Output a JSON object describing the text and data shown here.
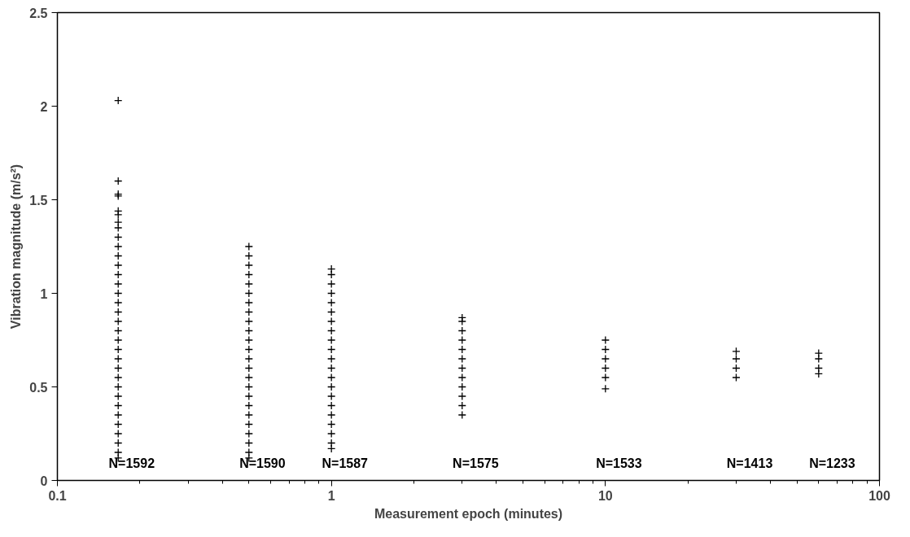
{
  "chart_data": {
    "type": "scatter",
    "xlabel": "Measurement epoch (minutes)",
    "ylabel": "Vibration magnitude (m/s²)",
    "log": "x",
    "marker": "cross",
    "grid": false,
    "xlim": [
      0.1,
      100
    ],
    "ylim": [
      0,
      2.5
    ],
    "xticks": [
      0.1,
      {
        "value": 0.2,
        "label": null
      },
      {
        "value": 0.3,
        "label": null
      },
      {
        "value": 0.4,
        "label": null
      },
      {
        "value": 0.5,
        "label": null
      },
      {
        "value": 0.6,
        "label": null
      },
      {
        "value": 0.7,
        "label": null
      },
      {
        "value": 0.8,
        "label": null
      },
      {
        "value": 0.9,
        "label": null
      },
      1,
      {
        "value": 2,
        "label": null
      },
      {
        "value": 3,
        "label": null
      },
      {
        "value": 4,
        "label": null
      },
      {
        "value": 5,
        "label": null
      },
      {
        "value": 6,
        "label": null
      },
      {
        "value": 7,
        "label": null
      },
      {
        "value": 8,
        "label": null
      },
      {
        "value": 9,
        "label": null
      },
      10,
      {
        "value": 20,
        "label": null
      },
      {
        "value": 30,
        "label": null
      },
      {
        "value": 40,
        "label": null
      },
      {
        "value": 50,
        "label": null
      },
      {
        "value": 60,
        "label": null
      },
      {
        "value": 70,
        "label": null
      },
      {
        "value": 80,
        "label": null
      },
      {
        "value": 90,
        "label": null
      },
      100
    ],
    "yticks": [
      0,
      0.5,
      1,
      1.5,
      2,
      2.5
    ],
    "series": [
      {
        "color": "#000000",
        "x": [
          0.1667,
          0.1667,
          0.1667,
          0.1667,
          0.1667,
          0.1667,
          0.1667,
          0.1667,
          0.1667,
          0.1667,
          0.1667,
          0.1667,
          0.1667,
          0.1667,
          0.1667,
          0.1667,
          0.1667,
          0.1667,
          0.1667,
          0.1667,
          0.1667,
          0.1667,
          0.1667,
          0.1667,
          0.1667,
          0.1667,
          0.1667,
          0.1667,
          0.1667,
          0.1667,
          0.1667,
          0.1667,
          0.1667
        ],
        "values": [
          0.12,
          0.15,
          0.2,
          0.25,
          0.3,
          0.35,
          0.4,
          0.45,
          0.5,
          0.55,
          0.6,
          0.65,
          0.7,
          0.75,
          0.8,
          0.85,
          0.9,
          0.95,
          1.0,
          1.05,
          1.1,
          1.15,
          1.2,
          1.25,
          1.3,
          1.35,
          1.38,
          1.42,
          1.44,
          1.52,
          1.53,
          1.6,
          2.03
        ]
      },
      {
        "color": "#000000",
        "x": [
          0.5,
          0.5,
          0.5,
          0.5,
          0.5,
          0.5,
          0.5,
          0.5,
          0.5,
          0.5,
          0.5,
          0.5,
          0.5,
          0.5,
          0.5,
          0.5,
          0.5,
          0.5,
          0.5,
          0.5,
          0.5,
          0.5,
          0.5,
          0.5
        ],
        "values": [
          0.12,
          0.15,
          0.2,
          0.25,
          0.3,
          0.35,
          0.4,
          0.45,
          0.5,
          0.55,
          0.6,
          0.65,
          0.7,
          0.75,
          0.8,
          0.85,
          0.9,
          0.95,
          1.0,
          1.05,
          1.1,
          1.15,
          1.2,
          1.25
        ]
      },
      {
        "color": "#000000",
        "x": [
          1,
          1,
          1,
          1,
          1,
          1,
          1,
          1,
          1,
          1,
          1,
          1,
          1,
          1,
          1,
          1,
          1,
          1,
          1,
          1,
          1
        ],
        "values": [
          0.17,
          0.2,
          0.25,
          0.3,
          0.35,
          0.4,
          0.45,
          0.5,
          0.55,
          0.6,
          0.65,
          0.7,
          0.75,
          0.8,
          0.85,
          0.9,
          0.95,
          1.0,
          1.05,
          1.1,
          1.13
        ]
      },
      {
        "color": "#000000",
        "x": [
          3,
          3,
          3,
          3,
          3,
          3,
          3,
          3,
          3,
          3,
          3,
          3
        ],
        "values": [
          0.35,
          0.4,
          0.45,
          0.5,
          0.55,
          0.6,
          0.65,
          0.7,
          0.75,
          0.8,
          0.85,
          0.87
        ]
      },
      {
        "color": "#000000",
        "x": [
          10,
          10,
          10,
          10,
          10,
          10
        ],
        "values": [
          0.49,
          0.55,
          0.6,
          0.65,
          0.7,
          0.75
        ]
      },
      {
        "color": "#000000",
        "x": [
          30,
          30,
          30,
          30
        ],
        "values": [
          0.55,
          0.6,
          0.65,
          0.69
        ]
      },
      {
        "color": "#000000",
        "x": [
          60,
          60,
          60,
          60
        ],
        "values": [
          0.57,
          0.6,
          0.65,
          0.68
        ]
      }
    ],
    "annotations": [
      "N=1592",
      "N=1590",
      "N=1587",
      "N=1575",
      "N=1533",
      "N=1413",
      "N=1233"
    ]
  }
}
